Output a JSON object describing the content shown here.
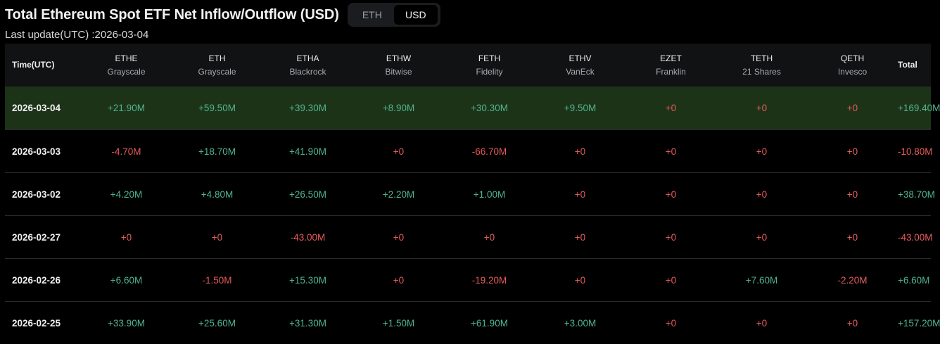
{
  "title": "Total Ethereum Spot ETF Net Inflow/Outflow (USD)",
  "toggle": {
    "options": [
      "ETH",
      "USD"
    ],
    "selected": "USD"
  },
  "last_update": "Last update(UTC) :2026-03-04",
  "colors": {
    "positive": "#4fb58f",
    "negative": "#e85a5a",
    "highlight_row": "#1d3318",
    "background": "#000000"
  },
  "table": {
    "headers": [
      {
        "ticker": "Time(UTC)",
        "issuer": ""
      },
      {
        "ticker": "ETHE",
        "issuer": "Grayscale"
      },
      {
        "ticker": "ETH",
        "issuer": "Grayscale"
      },
      {
        "ticker": "ETHA",
        "issuer": "Blackrock"
      },
      {
        "ticker": "ETHW",
        "issuer": "Bitwise"
      },
      {
        "ticker": "FETH",
        "issuer": "Fidelity"
      },
      {
        "ticker": "ETHV",
        "issuer": "VanEck"
      },
      {
        "ticker": "EZET",
        "issuer": "Franklin"
      },
      {
        "ticker": "TETH",
        "issuer": "21 Shares"
      },
      {
        "ticker": "QETH",
        "issuer": "Invesco"
      },
      {
        "ticker": "Total",
        "issuer": ""
      }
    ],
    "rows": [
      {
        "date": "2026-03-04",
        "highlighted": true,
        "values": [
          "+21.90M",
          "+59.50M",
          "+39.30M",
          "+8.90M",
          "+30.30M",
          "+9.50M",
          "+0",
          "+0",
          "+0",
          "+169.40M"
        ],
        "signs": [
          "pos",
          "pos",
          "pos",
          "pos",
          "pos",
          "pos",
          "neg",
          "neg",
          "neg",
          "pos"
        ]
      },
      {
        "date": "2026-03-03",
        "highlighted": false,
        "values": [
          "-4.70M",
          "+18.70M",
          "+41.90M",
          "+0",
          "-66.70M",
          "+0",
          "+0",
          "+0",
          "+0",
          "-10.80M"
        ],
        "signs": [
          "neg",
          "pos",
          "pos",
          "neg",
          "neg",
          "neg",
          "neg",
          "neg",
          "neg",
          "neg"
        ]
      },
      {
        "date": "2026-03-02",
        "highlighted": false,
        "values": [
          "+4.20M",
          "+4.80M",
          "+26.50M",
          "+2.20M",
          "+1.00M",
          "+0",
          "+0",
          "+0",
          "+0",
          "+38.70M"
        ],
        "signs": [
          "pos",
          "pos",
          "pos",
          "pos",
          "pos",
          "neg",
          "neg",
          "neg",
          "neg",
          "pos"
        ]
      },
      {
        "date": "2026-02-27",
        "highlighted": false,
        "values": [
          "+0",
          "+0",
          "-43.00M",
          "+0",
          "+0",
          "+0",
          "+0",
          "+0",
          "+0",
          "-43.00M"
        ],
        "signs": [
          "neg",
          "neg",
          "neg",
          "neg",
          "neg",
          "neg",
          "neg",
          "neg",
          "neg",
          "neg"
        ]
      },
      {
        "date": "2026-02-26",
        "highlighted": false,
        "values": [
          "+6.60M",
          "-1.50M",
          "+15.30M",
          "+0",
          "-19.20M",
          "+0",
          "+0",
          "+7.60M",
          "-2.20M",
          "+6.60M"
        ],
        "signs": [
          "pos",
          "neg",
          "pos",
          "neg",
          "neg",
          "neg",
          "neg",
          "pos",
          "neg",
          "pos"
        ]
      },
      {
        "date": "2026-02-25",
        "highlighted": false,
        "values": [
          "+33.90M",
          "+25.60M",
          "+31.30M",
          "+1.50M",
          "+61.90M",
          "+3.00M",
          "+0",
          "+0",
          "+0",
          "+157.20M"
        ],
        "signs": [
          "pos",
          "pos",
          "pos",
          "pos",
          "pos",
          "pos",
          "neg",
          "neg",
          "neg",
          "pos"
        ]
      }
    ]
  }
}
